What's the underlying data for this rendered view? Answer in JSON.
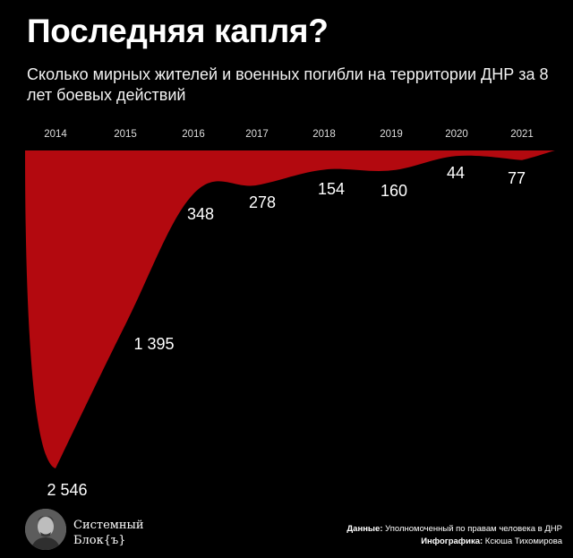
{
  "title": "Последняя капля?",
  "subtitle": "Сколько мирных жителей и военных погибли на территории ДНР за 8 лет боевых действий",
  "chart_data": {
    "type": "area",
    "categories": [
      "2014",
      "2015",
      "2016",
      "2017",
      "2018",
      "2019",
      "2020",
      "2021"
    ],
    "values": [
      2546,
      1395,
      348,
      278,
      154,
      160,
      44,
      77
    ],
    "value_labels": [
      "2 546",
      "1 395",
      "348",
      "278",
      "154",
      "160",
      "44",
      "77"
    ],
    "orientation": "inverted (area hangs down from top baseline)",
    "fill_color": "#b3090f",
    "grid": false,
    "legend": "none"
  },
  "footer": {
    "brand_line1": "Системный",
    "brand_line2": "Блок{ъ}",
    "source_label": "Данные:",
    "source_value": "Уполномоченный по правам человека в ДНР",
    "design_label": "Инфографика:",
    "design_value": "Ксюша Тихомирова"
  }
}
